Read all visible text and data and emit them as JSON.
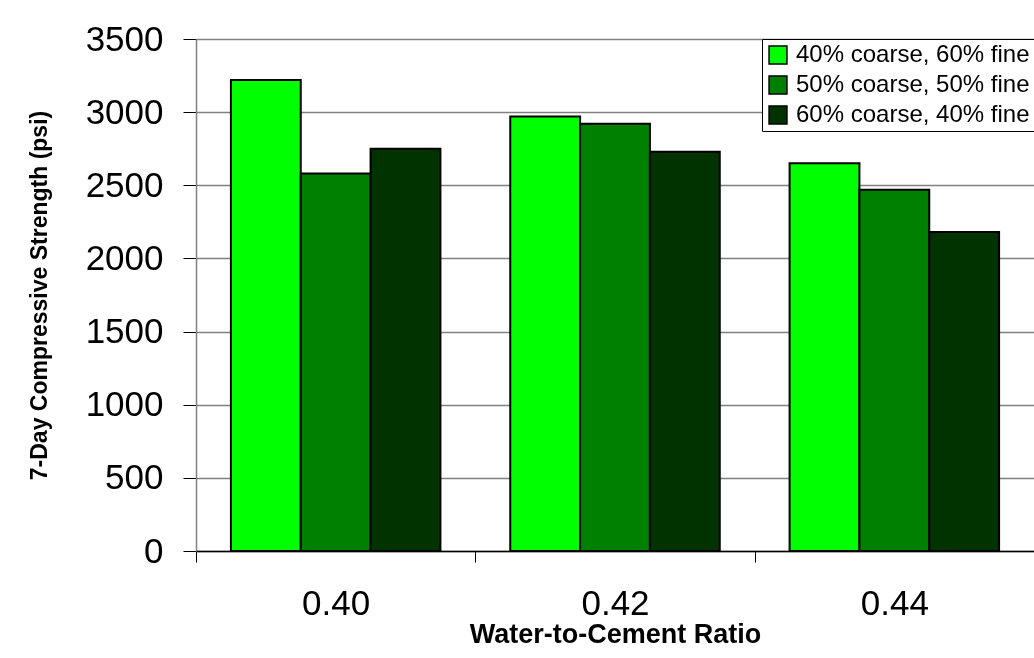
{
  "chart_data": {
    "type": "bar",
    "xlabel": "Water-to-Cement Ratio",
    "ylabel": "7-Day Compressive Strength (psi)",
    "categories": [
      "0.40",
      "0.42",
      "0.44"
    ],
    "series": [
      {
        "name": "40% coarse, 60% fine",
        "color": "#00ff00",
        "values": [
          3220,
          2970,
          2650
        ]
      },
      {
        "name": "50% coarse, 50% fine",
        "color": "#008000",
        "values": [
          2580,
          2920,
          2470
        ]
      },
      {
        "name": "60% coarse, 40% fine",
        "color": "#003300",
        "values": [
          2750,
          2730,
          2180
        ]
      }
    ],
    "ylim": [
      0,
      3500
    ],
    "yticks": [
      0,
      500,
      1000,
      1500,
      2000,
      2500,
      3000,
      3500
    ],
    "grid": "y",
    "legend": "top right"
  }
}
